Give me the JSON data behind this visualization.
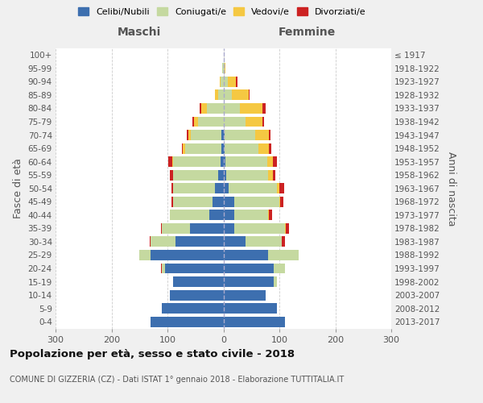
{
  "age_groups": [
    "0-4",
    "5-9",
    "10-14",
    "15-19",
    "20-24",
    "25-29",
    "30-34",
    "35-39",
    "40-44",
    "45-49",
    "50-54",
    "55-59",
    "60-64",
    "65-69",
    "70-74",
    "75-79",
    "80-84",
    "85-89",
    "90-94",
    "95-99",
    "100+"
  ],
  "birth_years": [
    "2013-2017",
    "2008-2012",
    "2003-2007",
    "1998-2002",
    "1993-1997",
    "1988-1992",
    "1983-1987",
    "1978-1982",
    "1973-1977",
    "1968-1972",
    "1963-1967",
    "1958-1962",
    "1953-1957",
    "1948-1952",
    "1943-1947",
    "1938-1942",
    "1933-1937",
    "1928-1932",
    "1923-1927",
    "1918-1922",
    "≤ 1917"
  ],
  "male": {
    "celibi": [
      130,
      110,
      95,
      90,
      105,
      130,
      85,
      60,
      25,
      20,
      15,
      10,
      5,
      3,
      3,
      0,
      0,
      0,
      0,
      0,
      0
    ],
    "coniugati": [
      0,
      0,
      0,
      0,
      5,
      20,
      45,
      50,
      70,
      70,
      75,
      80,
      85,
      65,
      55,
      45,
      30,
      10,
      5,
      2,
      0
    ],
    "vedovi": [
      0,
      0,
      0,
      0,
      0,
      0,
      0,
      0,
      0,
      0,
      0,
      0,
      2,
      4,
      5,
      8,
      10,
      5,
      2,
      0,
      0
    ],
    "divorziati": [
      0,
      0,
      0,
      0,
      2,
      0,
      2,
      2,
      0,
      3,
      3,
      5,
      7,
      2,
      2,
      2,
      2,
      0,
      0,
      0,
      0
    ]
  },
  "female": {
    "nubili": [
      110,
      95,
      75,
      90,
      90,
      80,
      40,
      20,
      20,
      20,
      10,
      5,
      3,
      2,
      2,
      0,
      0,
      0,
      0,
      0,
      0
    ],
    "coniugate": [
      0,
      0,
      0,
      5,
      20,
      55,
      65,
      90,
      60,
      80,
      85,
      75,
      75,
      60,
      55,
      40,
      30,
      15,
      8,
      2,
      0
    ],
    "vedove": [
      0,
      0,
      0,
      0,
      0,
      0,
      0,
      2,
      2,
      2,
      5,
      8,
      10,
      20,
      25,
      30,
      40,
      30,
      15,
      2,
      0
    ],
    "divorziate": [
      0,
      0,
      0,
      0,
      0,
      0,
      5,
      5,
      5,
      5,
      8,
      5,
      7,
      3,
      2,
      2,
      5,
      2,
      2,
      0,
      0
    ]
  },
  "colors": {
    "celibi": "#3d6faf",
    "coniugati": "#c5d9a0",
    "vedovi": "#f5c842",
    "divorziati": "#cc2222"
  },
  "legend_labels": [
    "Celibi/Nubili",
    "Coniugati/e",
    "Vedovi/e",
    "Divorziati/e"
  ],
  "title": "Popolazione per età, sesso e stato civile - 2018",
  "subtitle": "COMUNE DI GIZZERIA (CZ) - Dati ISTAT 1° gennaio 2018 - Elaborazione TUTTITALIA.IT",
  "ylabel_left": "Fasce di età",
  "ylabel_right": "Anni di nascita",
  "xlabel_left": "Maschi",
  "xlabel_right": "Femmine",
  "xlim": 300,
  "bg_color": "#f0f0f0",
  "plot_bg": "#ffffff"
}
